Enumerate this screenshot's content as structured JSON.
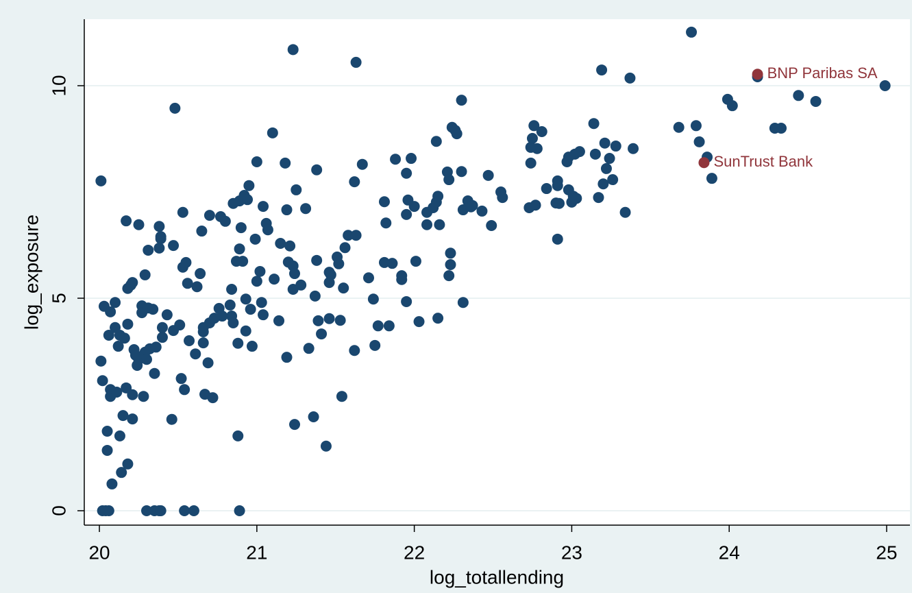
{
  "chart_data": {
    "type": "scatter",
    "xlabel": "log_totallending",
    "ylabel": "log_exposure",
    "xlim": [
      19.904,
      25.148
    ],
    "ylim": [
      -0.339,
      11.565
    ],
    "xticks": [
      20,
      21,
      22,
      23,
      24,
      25
    ],
    "yticks": [
      0,
      5,
      10
    ],
    "grid": true,
    "series": [
      {
        "color": "#1a476f",
        "x": [
          20.01,
          20.01,
          20.02,
          20.03,
          20.06,
          20.07,
          20.05,
          20.05,
          20.08,
          20.07,
          20.07,
          20.1,
          20.1,
          20.11,
          20.12,
          20.13,
          20.13,
          20.14,
          20.15,
          20.16,
          20.17,
          20.18,
          20.18,
          20.17,
          20.18,
          20.2,
          20.21,
          20.21,
          20.21,
          20.22,
          20.23,
          20.25,
          20.24,
          20.25,
          20.27,
          20.27,
          20.28,
          20.29,
          20.29,
          20.3,
          20.31,
          20.31,
          20.32,
          20.34,
          20.35,
          20.36,
          20.38,
          20.39,
          20.39,
          20.38,
          20.4,
          20.4,
          20.43,
          20.46,
          20.47,
          20.47,
          20.48,
          20.51,
          20.52,
          20.53,
          20.53,
          20.54,
          20.55,
          20.56,
          20.57,
          20.61,
          20.62,
          20.64,
          20.65,
          20.66,
          20.66,
          20.66,
          20.67,
          20.69,
          20.7,
          20.7,
          20.72,
          20.73,
          20.76,
          20.77,
          20.78,
          20.8,
          20.83,
          20.84,
          20.84,
          20.85,
          20.85,
          20.87,
          20.88,
          20.88,
          20.89,
          20.89,
          20.9,
          20.91,
          20.92,
          20.93,
          20.93,
          20.94,
          20.95,
          20.96,
          20.97,
          20.99,
          21.0,
          21.0,
          21.02,
          21.03,
          21.04,
          21.04,
          21.06,
          21.07,
          21.1,
          21.11,
          21.14,
          21.15,
          21.18,
          21.19,
          21.19,
          21.2,
          21.21,
          21.23,
          21.23,
          21.23,
          21.24,
          21.24,
          21.25,
          21.28,
          21.31,
          21.33,
          21.36,
          21.37,
          21.38,
          21.38,
          21.39,
          21.41,
          21.44,
          21.46,
          21.46,
          21.46,
          21.47,
          21.51,
          21.52,
          21.53,
          21.54,
          21.55,
          21.56,
          21.58,
          21.62,
          21.62,
          21.63,
          21.63,
          21.67,
          21.71,
          21.74,
          21.75,
          21.77,
          21.81,
          21.81,
          21.82,
          21.84,
          21.86,
          21.88,
          21.92,
          21.92,
          21.95,
          21.95,
          21.95,
          21.96,
          21.98,
          22.0,
          22.01,
          22.03,
          22.08,
          22.08,
          22.12,
          22.14,
          22.14,
          22.15,
          22.15,
          22.16,
          22.21,
          22.22,
          22.22,
          22.23,
          22.23,
          22.24,
          22.26,
          22.27,
          22.3,
          22.3,
          22.31,
          22.31,
          22.34,
          22.36,
          22.37,
          22.43,
          22.47,
          22.49,
          22.55,
          22.56,
          22.73,
          22.74,
          22.74,
          22.75,
          22.76,
          22.77,
          22.78,
          22.81,
          22.84,
          22.9,
          22.91,
          22.91,
          22.91,
          22.92,
          22.97,
          22.98,
          22.98,
          23.0,
          23.01,
          23.02,
          23.03,
          23.05,
          23.14,
          23.15,
          23.17,
          23.19,
          23.2,
          23.21,
          23.22,
          23.24,
          23.26,
          23.28,
          23.34,
          23.37,
          23.39,
          23.68,
          23.76,
          23.79,
          23.81,
          23.86,
          23.89,
          23.99,
          24.02,
          24.18,
          24.29,
          24.33,
          24.44,
          24.55,
          24.99,
          20.02,
          20.04,
          20.06,
          20.3,
          20.35,
          20.38,
          20.39,
          20.54,
          20.6,
          20.89
        ],
        "values": [
          7.76,
          3.52,
          3.06,
          4.81,
          4.13,
          4.68,
          1.87,
          1.42,
          0.63,
          2.85,
          2.69,
          4.9,
          4.31,
          2.79,
          3.87,
          4.13,
          1.76,
          0.9,
          2.24,
          4.06,
          6.82,
          1.1,
          5.23,
          2.89,
          4.39,
          5.31,
          5.37,
          2.73,
          2.16,
          3.79,
          3.66,
          6.73,
          3.42,
          3.56,
          4.82,
          4.66,
          2.69,
          5.55,
          3.73,
          3.56,
          6.13,
          4.77,
          3.81,
          4.74,
          3.23,
          3.85,
          6.69,
          6.45,
          6.4,
          6.18,
          4.31,
          4.08,
          4.61,
          2.15,
          6.24,
          4.24,
          9.47,
          4.37,
          3.11,
          5.73,
          7.02,
          2.85,
          5.84,
          5.35,
          4.0,
          3.69,
          5.27,
          5.58,
          6.58,
          4.21,
          4.31,
          3.95,
          2.74,
          3.48,
          6.95,
          4.42,
          2.66,
          4.53,
          4.76,
          6.92,
          4.58,
          6.81,
          4.84,
          4.58,
          5.21,
          7.23,
          4.42,
          5.87,
          3.94,
          1.76,
          7.29,
          6.16,
          6.66,
          5.87,
          7.42,
          4.98,
          4.23,
          7.32,
          7.65,
          4.74,
          3.87,
          6.39,
          5.4,
          8.21,
          5.63,
          4.9,
          4.61,
          7.16,
          6.76,
          6.61,
          8.89,
          5.45,
          4.47,
          6.29,
          8.18,
          7.08,
          3.61,
          5.85,
          6.23,
          10.85,
          5.76,
          5.21,
          2.03,
          5.58,
          7.55,
          5.31,
          7.11,
          3.82,
          2.21,
          5.05,
          5.89,
          8.02,
          4.47,
          4.16,
          1.52,
          4.52,
          5.61,
          5.37,
          5.55,
          5.97,
          5.81,
          4.48,
          2.69,
          5.24,
          6.19,
          6.48,
          3.77,
          7.74,
          10.55,
          6.48,
          8.15,
          5.48,
          4.98,
          3.89,
          4.35,
          5.84,
          7.27,
          6.77,
          4.35,
          5.82,
          8.27,
          5.44,
          5.53,
          7.94,
          6.97,
          4.92,
          7.31,
          8.29,
          7.16,
          5.87,
          4.45,
          7.02,
          6.73,
          7.13,
          8.69,
          7.26,
          7.4,
          4.53,
          6.73,
          7.97,
          5.53,
          7.79,
          6.06,
          5.79,
          9.02,
          8.95,
          8.87,
          9.66,
          7.98,
          4.9,
          7.08,
          7.29,
          7.15,
          7.18,
          7.05,
          7.89,
          6.71,
          7.5,
          7.37,
          7.13,
          8.18,
          8.55,
          8.76,
          9.06,
          7.19,
          8.52,
          8.92,
          7.58,
          7.24,
          7.76,
          7.65,
          6.39,
          7.23,
          8.21,
          7.55,
          8.32,
          7.26,
          7.4,
          8.39,
          7.35,
          8.45,
          9.11,
          8.39,
          7.37,
          10.37,
          7.69,
          8.65,
          8.05,
          8.29,
          7.79,
          8.58,
          7.02,
          10.18,
          8.52,
          9.02,
          11.26,
          9.06,
          8.68,
          8.32,
          7.82,
          9.68,
          9.53,
          10.21,
          9.0,
          9.0,
          9.77,
          9.63,
          10.0,
          0,
          0,
          0,
          0,
          0,
          0,
          0,
          0,
          0,
          0
        ]
      },
      {
        "color": "#90353b",
        "x": [
          24.18,
          23.84
        ],
        "values": [
          10.27,
          8.19
        ],
        "labels": [
          "BNP Paribas SA",
          "SunTrust Bank"
        ]
      }
    ]
  }
}
